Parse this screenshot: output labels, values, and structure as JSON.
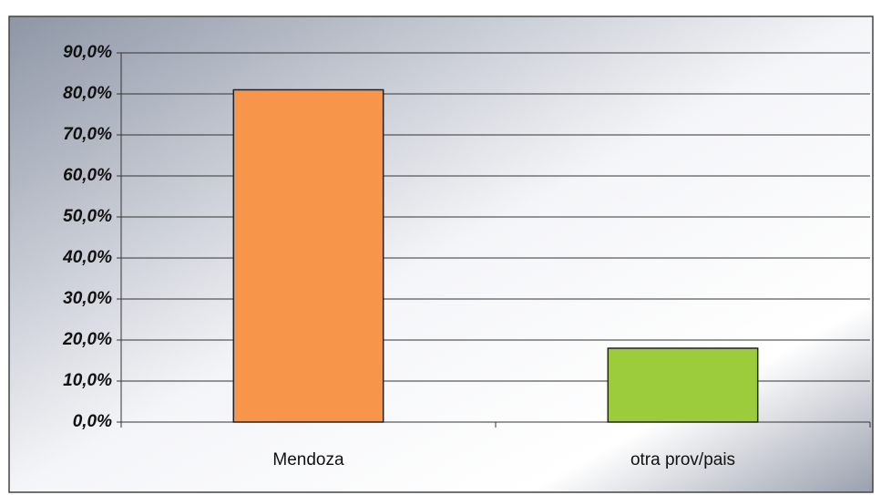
{
  "chart_data": {
    "type": "bar",
    "categories": [
      "Mendoza",
      "otra prov/pais"
    ],
    "values": [
      81,
      18
    ],
    "colors": [
      "#f7964a",
      "#9ccc3c"
    ],
    "ylim": [
      0,
      90
    ],
    "yticks": [
      {
        "value": 0,
        "label": "0,0%"
      },
      {
        "value": 10,
        "label": "10,0%"
      },
      {
        "value": 20,
        "label": "20,0%"
      },
      {
        "value": 30,
        "label": "30,0%"
      },
      {
        "value": 40,
        "label": "40,0%"
      },
      {
        "value": 50,
        "label": "50,0%"
      },
      {
        "value": 60,
        "label": "60,0%"
      },
      {
        "value": 70,
        "label": "70,0%"
      },
      {
        "value": 80,
        "label": "80,0%"
      },
      {
        "value": 90,
        "label": "90,0%"
      }
    ],
    "grid": true
  }
}
